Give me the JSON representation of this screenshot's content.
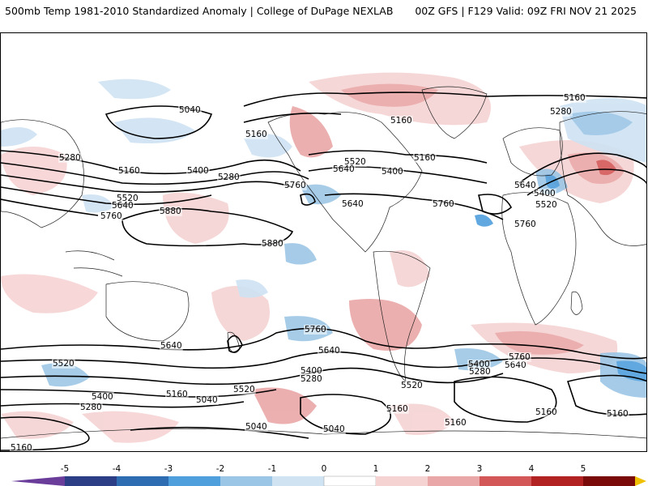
{
  "header": {
    "title_left": "500mb Temp 1981-2010 Standardized Anomaly | College of DuPage NEXLAB",
    "title_right": "00Z GFS | F129 Valid: 09Z FRI NOV 21 2025"
  },
  "colors": {
    "anomaly_scale": [
      "#6a3d9a",
      "#2c3f86",
      "#2f6db3",
      "#4f9fdc",
      "#9cc6e6",
      "#cfe3f3",
      "#ffffff",
      "#ffffff",
      "#f6d3d3",
      "#eaa7a7",
      "#d45757",
      "#b22222",
      "#7a0a0a",
      "#f0c000"
    ],
    "contour": "#000000",
    "coast": "#222222"
  },
  "colorbar": {
    "tick_labels": [
      "-5",
      "-4",
      "-3",
      "-2",
      "-1",
      "0",
      "1",
      "2",
      "3",
      "4",
      "5"
    ]
  },
  "contour_labels": [
    {
      "id": "c1",
      "text": "5040"
    },
    {
      "id": "c2",
      "text": "5160"
    },
    {
      "id": "c3",
      "text": "5280"
    },
    {
      "id": "c4",
      "text": "5160"
    },
    {
      "id": "c5",
      "text": "5400"
    },
    {
      "id": "c6",
      "text": "5280"
    },
    {
      "id": "c7",
      "text": "5520"
    },
    {
      "id": "c8",
      "text": "5640"
    },
    {
      "id": "c9",
      "text": "5760"
    },
    {
      "id": "c10",
      "text": "5880"
    },
    {
      "id": "c11",
      "text": "5880"
    },
    {
      "id": "c12",
      "text": "5160"
    },
    {
      "id": "c13",
      "text": "5520"
    },
    {
      "id": "c14",
      "text": "5640"
    },
    {
      "id": "c15",
      "text": "5400"
    },
    {
      "id": "c16",
      "text": "5760"
    },
    {
      "id": "c17",
      "text": "5640"
    },
    {
      "id": "c18",
      "text": "5160"
    },
    {
      "id": "c19",
      "text": "5280"
    },
    {
      "id": "c20",
      "text": "5160"
    },
    {
      "id": "c21",
      "text": "5280"
    },
    {
      "id": "c22",
      "text": "5640"
    },
    {
      "id": "c23",
      "text": "5400"
    },
    {
      "id": "c24",
      "text": "5520"
    },
    {
      "id": "c25",
      "text": "5760"
    },
    {
      "id": "c26",
      "text": "5760"
    },
    {
      "id": "c27",
      "text": "5760"
    },
    {
      "id": "c28",
      "text": "5640"
    },
    {
      "id": "c29",
      "text": "5640"
    },
    {
      "id": "c30",
      "text": "5520"
    },
    {
      "id": "c31",
      "text": "5400"
    },
    {
      "id": "c32",
      "text": "5280"
    },
    {
      "id": "c33",
      "text": "5160"
    },
    {
      "id": "c34",
      "text": "5040"
    },
    {
      "id": "c35",
      "text": "5400"
    },
    {
      "id": "c36",
      "text": "5280"
    },
    {
      "id": "c37",
      "text": "5520"
    },
    {
      "id": "c38",
      "text": "5160"
    },
    {
      "id": "c39",
      "text": "5040"
    },
    {
      "id": "c40",
      "text": "5040"
    },
    {
      "id": "c41",
      "text": "5160"
    },
    {
      "id": "c42",
      "text": "5160"
    },
    {
      "id": "c43",
      "text": "5400"
    },
    {
      "id": "c44",
      "text": "5640"
    },
    {
      "id": "c45",
      "text": "5760"
    },
    {
      "id": "c46",
      "text": "5280"
    },
    {
      "id": "c47",
      "text": "5160"
    },
    {
      "id": "c48",
      "text": "5160"
    },
    {
      "id": "c49",
      "text": "5520"
    }
  ]
}
